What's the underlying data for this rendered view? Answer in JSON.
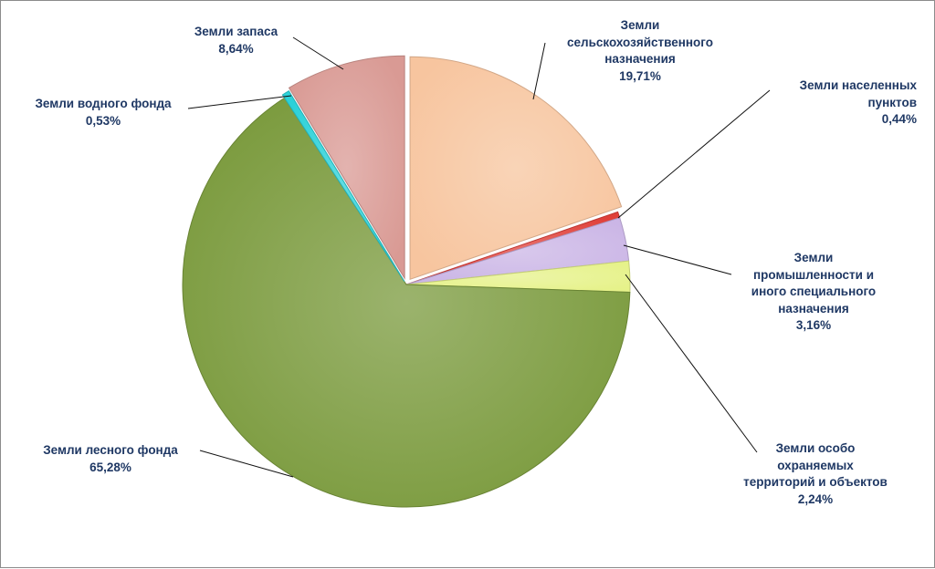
{
  "chart_data": {
    "type": "pie",
    "style": "3d-exploded",
    "slices": [
      {
        "key": "agri",
        "name_lines": [
          "Земли",
          "сельскохозяйственного",
          "назначения"
        ],
        "value": 19.71,
        "value_label": "19,71%",
        "color": "#f7c59f"
      },
      {
        "key": "settle",
        "name_lines": [
          "Земли населенных",
          "пунктов"
        ],
        "value": 0.44,
        "value_label": "0,44%",
        "color": "#e0403a"
      },
      {
        "key": "industry",
        "name_lines": [
          "Земли",
          "промышленности и",
          "иного специального",
          "назначения"
        ],
        "value": 3.16,
        "value_label": "3,16%",
        "color": "#cbb6e6"
      },
      {
        "key": "protected",
        "name_lines": [
          "Земли особо",
          "охраняемых",
          "территорий и объектов"
        ],
        "value": 2.24,
        "value_label": "2,24%",
        "color": "#e6f28a"
      },
      {
        "key": "forest",
        "name_lines": [
          "Земли лесного фонда"
        ],
        "value": 65.28,
        "value_label": "65,28%",
        "color": "#7a9a3c"
      },
      {
        "key": "water",
        "name_lines": [
          "Земли водного фонда"
        ],
        "value": 0.53,
        "value_label": "0,53%",
        "color": "#2bd1d8"
      },
      {
        "key": "reserve",
        "name_lines": [
          "Земли запаса"
        ],
        "value": 8.64,
        "value_label": "8,64%",
        "color": "#d99a94"
      }
    ]
  }
}
